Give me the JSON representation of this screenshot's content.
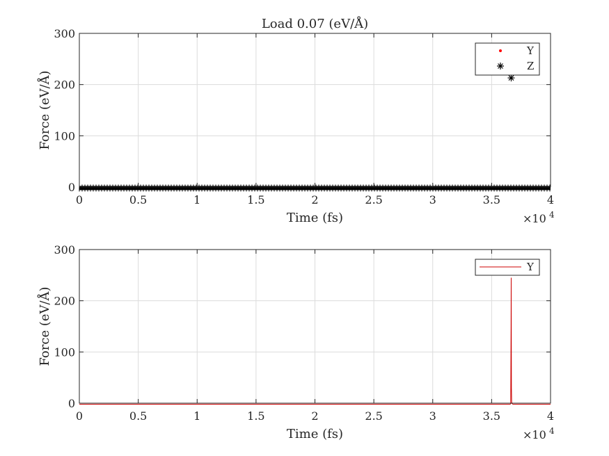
{
  "chart_data": [
    {
      "type": "scatter",
      "title": "Load  0.07 (eV/Å)",
      "xlabel": "Time (fs)",
      "ylabel": "Force (eV/Å)",
      "xlim": [
        0,
        40000
      ],
      "ylim": [
        0,
        300
      ],
      "x_ticks": [
        0,
        5000,
        10000,
        15000,
        20000,
        25000,
        30000,
        35000,
        40000
      ],
      "x_tick_labels": [
        "0",
        "0.5",
        "1",
        "1.5",
        "2",
        "2.5",
        "3",
        "3.5",
        "4"
      ],
      "x_exponent_label": "×10",
      "x_exponent_power": "4",
      "y_ticks": [
        0,
        100,
        200,
        300
      ],
      "y_tick_labels": [
        "0",
        "100",
        "200",
        "300"
      ],
      "grid": true,
      "legend_position": "top-right",
      "series": [
        {
          "name": "Y",
          "marker": "dot",
          "color": "#ff0000",
          "baseline": {
            "x_range": [
              0,
              40000
            ],
            "y": -2
          },
          "points": [
            [
              36660,
              245
            ]
          ]
        },
        {
          "name": "Z",
          "marker": "asterisk",
          "color": "#000000",
          "baseline": {
            "x_range": [
              0,
              40000
            ],
            "y": -2
          },
          "points": [
            [
              36660,
              213
            ]
          ]
        }
      ]
    },
    {
      "type": "line",
      "title": "",
      "xlabel": "Time (fs)",
      "ylabel": "Force (eV/Å)",
      "xlim": [
        0,
        40000
      ],
      "ylim": [
        0,
        300
      ],
      "x_ticks": [
        0,
        5000,
        10000,
        15000,
        20000,
        25000,
        30000,
        35000,
        40000
      ],
      "x_tick_labels": [
        "0",
        "0.5",
        "1",
        "1.5",
        "2",
        "2.5",
        "3",
        "3.5",
        "4"
      ],
      "x_exponent_label": "×10",
      "x_exponent_power": "4",
      "y_ticks": [
        0,
        100,
        200,
        300
      ],
      "y_tick_labels": [
        "0",
        "100",
        "200",
        "300"
      ],
      "grid": true,
      "legend_position": "top-right",
      "series": [
        {
          "name": "Y",
          "color": "#cc0000",
          "x": [
            0,
            36580,
            36620,
            36650,
            36660,
            36680,
            36700,
            36740,
            36800,
            40000
          ],
          "y": [
            -2,
            -2,
            -1,
            150,
            245,
            30,
            2,
            -1,
            -2,
            -2
          ]
        }
      ]
    }
  ]
}
